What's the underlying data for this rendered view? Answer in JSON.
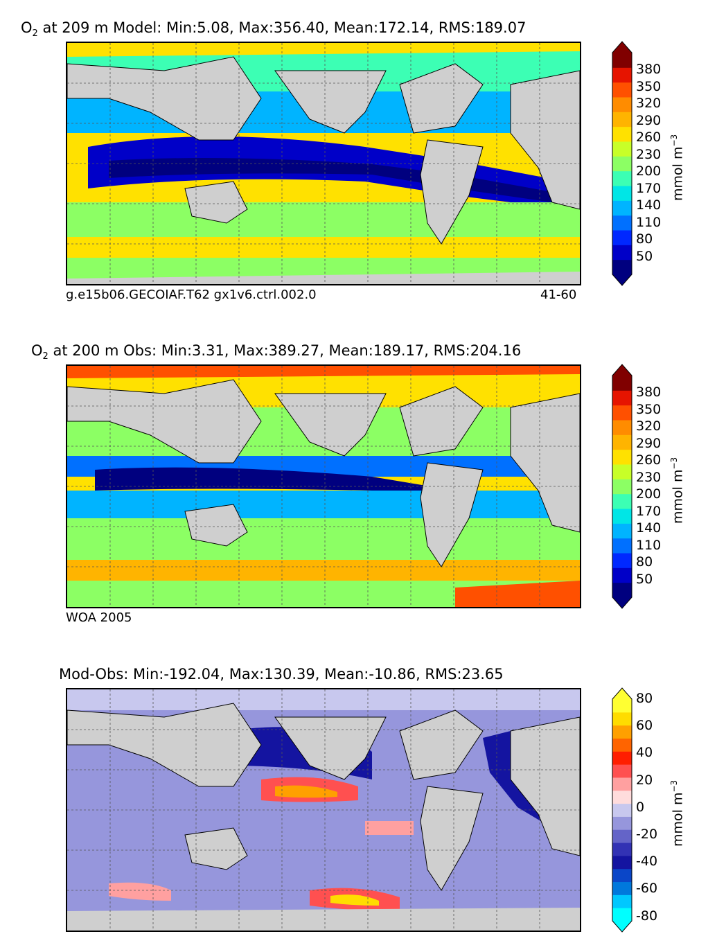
{
  "panels": [
    {
      "title_main": "O",
      "title_sub": "2",
      "title_rest": " at 209 m Model: Min:5.08, Max:356.40, Mean:172.14, RMS:189.07",
      "caption_left": "g.e15b06.GECOIAF.T62 gx1v6.ctrl.002.0",
      "caption_right": "41-60",
      "colorbar": {
        "ticks": [
          "380",
          "350",
          "320",
          "290",
          "260",
          "230",
          "200",
          "170",
          "140",
          "110",
          "80",
          "50"
        ],
        "unit_main": "mmol m",
        "unit_sup": "−3",
        "colors": [
          "#00007f",
          "#0000c8",
          "#0028ff",
          "#0070ff",
          "#00b4ff",
          "#00e6e6",
          "#3cffb4",
          "#8cff64",
          "#c8ff28",
          "#ffe100",
          "#ffb400",
          "#ff8c00",
          "#ff5000",
          "#e61400",
          "#800000"
        ]
      }
    },
    {
      "title_main": "O",
      "title_sub": "2",
      "title_rest": " at 200 m Obs: Min:3.31, Max:389.27, Mean:189.17, RMS:204.16",
      "caption_left": "WOA 2005",
      "caption_right": "",
      "colorbar": {
        "ticks": [
          "380",
          "350",
          "320",
          "290",
          "260",
          "230",
          "200",
          "170",
          "140",
          "110",
          "80",
          "50"
        ],
        "unit_main": "mmol m",
        "unit_sup": "−3",
        "colors": [
          "#00007f",
          "#0000c8",
          "#0028ff",
          "#0070ff",
          "#00b4ff",
          "#00e6e6",
          "#3cffb4",
          "#8cff64",
          "#c8ff28",
          "#ffe100",
          "#ffb400",
          "#ff8c00",
          "#ff5000",
          "#e61400",
          "#800000"
        ]
      }
    },
    {
      "title_main": "Mod-Obs: Min:-192.04, Max:130.39, Mean:-10.86, RMS:23.65",
      "title_sub": "",
      "title_rest": "",
      "caption_left": "",
      "caption_right": "",
      "colorbar": {
        "ticks": [
          "80",
          "60",
          "40",
          "20",
          "0",
          "-20",
          "-40",
          "-60",
          "-80"
        ],
        "unit_main": "mmol m",
        "unit_sup": "−3",
        "colors": [
          "#00ffff",
          "#00c8ff",
          "#0078dc",
          "#0a46c8",
          "#1414a0",
          "#3232b4",
          "#6464c8",
          "#9696dc",
          "#c8c8ee",
          "#ffdcdc",
          "#ffa0a0",
          "#ff5050",
          "#ff1e00",
          "#ff6400",
          "#ffa000",
          "#ffdc00",
          "#ffff32"
        ]
      }
    }
  ],
  "land_color": "#cfcfcf"
}
